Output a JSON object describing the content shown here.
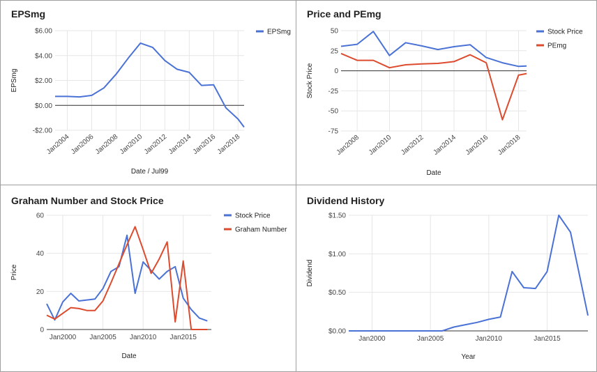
{
  "chart_data": [
    {
      "type": "line",
      "title": "EPSmg",
      "xlabel": "Date / Jul99",
      "ylabel": "EPSmg",
      "x_type": "date",
      "xlim": [
        "2003-01-01",
        "2018-07-01"
      ],
      "ylim": [
        -2,
        6
      ],
      "y_ticks": [
        -2,
        0,
        2,
        4,
        6
      ],
      "y_tick_labels": [
        "-$2.00",
        "$0.00",
        "$2.00",
        "$4.00",
        "$6.00"
      ],
      "x_ticks": [
        "2004-01-01",
        "2006-01-01",
        "2008-01-01",
        "2010-01-01",
        "2012-01-01",
        "2014-01-01",
        "2016-01-01",
        "2018-01-01"
      ],
      "x_tick_labels": [
        "Jan2004",
        "Jan2006",
        "Jan2008",
        "Jan2010",
        "Jan2012",
        "Jan2014",
        "Jan2016",
        "Jan2018"
      ],
      "x_tick_rotate": -40,
      "zero_line": true,
      "legend_position": "top-right",
      "grid": true,
      "series": [
        {
          "name": "EPSmg",
          "color": "#4a72d6",
          "points": [
            [
              "2003-01-01",
              0.72
            ],
            [
              "2004-01-01",
              0.72
            ],
            [
              "2005-01-01",
              0.68
            ],
            [
              "2006-01-01",
              0.8
            ],
            [
              "2007-01-01",
              1.4
            ],
            [
              "2008-01-01",
              2.5
            ],
            [
              "2009-01-01",
              3.8
            ],
            [
              "2010-01-01",
              5.0
            ],
            [
              "2011-01-01",
              4.65
            ],
            [
              "2012-01-01",
              3.6
            ],
            [
              "2013-01-01",
              2.9
            ],
            [
              "2014-01-01",
              2.65
            ],
            [
              "2015-01-01",
              1.6
            ],
            [
              "2016-01-01",
              1.65
            ],
            [
              "2017-01-01",
              -0.2
            ],
            [
              "2018-01-01",
              -1.1
            ],
            [
              "2018-07-01",
              -1.75
            ]
          ]
        }
      ]
    },
    {
      "type": "line",
      "title": "Price and PEmg",
      "xlabel": "Date",
      "ylabel": "Stock Price",
      "x_type": "date",
      "xlim": [
        "2007-01-01",
        "2018-07-01"
      ],
      "ylim": [
        -75,
        50
      ],
      "y_ticks": [
        -75,
        -50,
        -25,
        0,
        25,
        50
      ],
      "y_tick_labels": [
        "-75",
        "-50",
        "-25",
        "0",
        "25",
        "50"
      ],
      "x_ticks": [
        "2008-01-01",
        "2010-01-01",
        "2012-01-01",
        "2014-01-01",
        "2016-01-01",
        "2018-01-01"
      ],
      "x_tick_labels": [
        "Jan2008",
        "Jan2010",
        "Jan2012",
        "Jan2014",
        "Jan2016",
        "Jan2018"
      ],
      "x_tick_rotate": -40,
      "zero_line": true,
      "legend_position": "top-right",
      "grid": true,
      "series": [
        {
          "name": "Stock Price",
          "color": "#4a72d6",
          "points": [
            [
              "2007-01-01",
              30.5
            ],
            [
              "2008-01-01",
              33.0
            ],
            [
              "2009-01-01",
              49.0
            ],
            [
              "2010-01-01",
              19.0
            ],
            [
              "2011-01-01",
              35.0
            ],
            [
              "2012-01-01",
              31.0
            ],
            [
              "2013-01-01",
              26.5
            ],
            [
              "2014-01-01",
              30.0
            ],
            [
              "2015-01-01",
              32.5
            ],
            [
              "2016-01-01",
              16.5
            ],
            [
              "2017-01-01",
              10.0
            ],
            [
              "2018-01-01",
              5.5
            ],
            [
              "2018-07-01",
              6.0
            ]
          ]
        },
        {
          "name": "PEmg",
          "color": "#dc4b2e",
          "points": [
            [
              "2007-01-01",
              21.5
            ],
            [
              "2008-01-01",
              13.0
            ],
            [
              "2009-01-01",
              13.0
            ],
            [
              "2010-01-01",
              3.8
            ],
            [
              "2011-01-01",
              7.5
            ],
            [
              "2012-01-01",
              8.5
            ],
            [
              "2013-01-01",
              9.2
            ],
            [
              "2014-01-01",
              11.5
            ],
            [
              "2015-01-01",
              20.0
            ],
            [
              "2016-01-01",
              10.0
            ],
            [
              "2017-01-01",
              -61.0
            ],
            [
              "2018-01-01",
              -5.5
            ],
            [
              "2018-07-01",
              -3.5
            ]
          ]
        }
      ]
    },
    {
      "type": "line",
      "title": "Graham Number and Stock Price",
      "xlabel": "Date",
      "ylabel": "Price",
      "x_type": "date",
      "xlim": [
        "1998-01-01",
        "2018-07-01"
      ],
      "ylim": [
        0,
        60
      ],
      "y_ticks": [
        0,
        20,
        40,
        60
      ],
      "y_tick_labels": [
        "0",
        "20",
        "40",
        "60"
      ],
      "x_ticks": [
        "2000-01-01",
        "2005-01-01",
        "2010-01-01",
        "2015-01-01"
      ],
      "x_tick_labels": [
        "Jan2000",
        "Jan2005",
        "Jan2010",
        "Jan2015"
      ],
      "x_tick_rotate": 0,
      "zero_line": false,
      "legend_position": "top-right",
      "grid": true,
      "series": [
        {
          "name": "Stock Price",
          "color": "#4a72d6",
          "points": [
            [
              "1998-01-01",
              13.5
            ],
            [
              "1999-01-01",
              5.0
            ],
            [
              "2000-01-01",
              14.5
            ],
            [
              "2001-01-01",
              19.0
            ],
            [
              "2002-01-01",
              15.0
            ],
            [
              "2003-01-01",
              15.5
            ],
            [
              "2004-01-01",
              16.0
            ],
            [
              "2005-01-01",
              21.5
            ],
            [
              "2006-01-01",
              30.5
            ],
            [
              "2007-01-01",
              33.0
            ],
            [
              "2008-01-01",
              49.5
            ],
            [
              "2009-01-01",
              19.0
            ],
            [
              "2010-01-01",
              35.5
            ],
            [
              "2011-01-01",
              31.0
            ],
            [
              "2012-01-01",
              26.5
            ],
            [
              "2013-01-01",
              30.5
            ],
            [
              "2014-01-01",
              33.0
            ],
            [
              "2015-01-01",
              16.5
            ],
            [
              "2016-01-01",
              10.5
            ],
            [
              "2017-01-01",
              6.0
            ],
            [
              "2018-01-01",
              4.5
            ]
          ]
        },
        {
          "name": "Graham Number",
          "color": "#dc4b2e",
          "points": [
            [
              "1998-01-01",
              7.5
            ],
            [
              "1999-01-01",
              5.5
            ],
            [
              "2000-01-01",
              8.5
            ],
            [
              "2001-01-01",
              11.5
            ],
            [
              "2002-01-01",
              11.0
            ],
            [
              "2003-01-01",
              10.0
            ],
            [
              "2004-01-01",
              10.0
            ],
            [
              "2005-01-01",
              15.0
            ],
            [
              "2006-01-01",
              24.5
            ],
            [
              "2007-01-01",
              34.5
            ],
            [
              "2008-01-01",
              44.5
            ],
            [
              "2009-01-01",
              54.0
            ],
            [
              "2010-01-01",
              42.0
            ],
            [
              "2011-01-01",
              29.5
            ],
            [
              "2012-01-01",
              37.0
            ],
            [
              "2013-01-01",
              46.0
            ],
            [
              "2014-01-01",
              4.0
            ],
            [
              "2015-01-01",
              36.0
            ],
            [
              "2016-01-01",
              0.0
            ],
            [
              "2017-01-01",
              0.0
            ],
            [
              "2018-01-01",
              0.0
            ]
          ]
        }
      ]
    },
    {
      "type": "line",
      "title": "Dividend History",
      "xlabel": "Year",
      "ylabel": "Dividend",
      "x_type": "date",
      "xlim": [
        "1998-01-01",
        "2018-07-01"
      ],
      "ylim": [
        0,
        1.5
      ],
      "y_ticks": [
        0,
        0.5,
        1.0,
        1.5
      ],
      "y_tick_labels": [
        "$0.00",
        "$0.50",
        "$1.00",
        "$1.50"
      ],
      "x_ticks": [
        "2000-01-01",
        "2005-01-01",
        "2010-01-01",
        "2015-01-01"
      ],
      "x_tick_labels": [
        "Jan2000",
        "Jan2005",
        "Jan2010",
        "Jan2015"
      ],
      "x_tick_rotate": 0,
      "zero_line": false,
      "legend_position": "none",
      "grid": true,
      "series": [
        {
          "name": "",
          "color": "#4a72d6",
          "points": [
            [
              "1998-01-01",
              0.0
            ],
            [
              "1999-01-01",
              0.0
            ],
            [
              "2000-01-01",
              0.0
            ],
            [
              "2001-01-01",
              0.0
            ],
            [
              "2002-01-01",
              0.0
            ],
            [
              "2003-01-01",
              0.0
            ],
            [
              "2004-01-01",
              0.0
            ],
            [
              "2005-01-01",
              0.0
            ],
            [
              "2006-01-01",
              0.0
            ],
            [
              "2007-01-01",
              0.05
            ],
            [
              "2008-01-01",
              0.08
            ],
            [
              "2009-01-01",
              0.11
            ],
            [
              "2010-01-01",
              0.15
            ],
            [
              "2011-01-01",
              0.18
            ],
            [
              "2012-01-01",
              0.77
            ],
            [
              "2013-01-01",
              0.56
            ],
            [
              "2014-01-01",
              0.55
            ],
            [
              "2015-01-01",
              0.77
            ],
            [
              "2016-01-01",
              1.5
            ],
            [
              "2017-01-01",
              1.28
            ],
            [
              "2018-07-01",
              0.2
            ]
          ]
        }
      ]
    }
  ]
}
